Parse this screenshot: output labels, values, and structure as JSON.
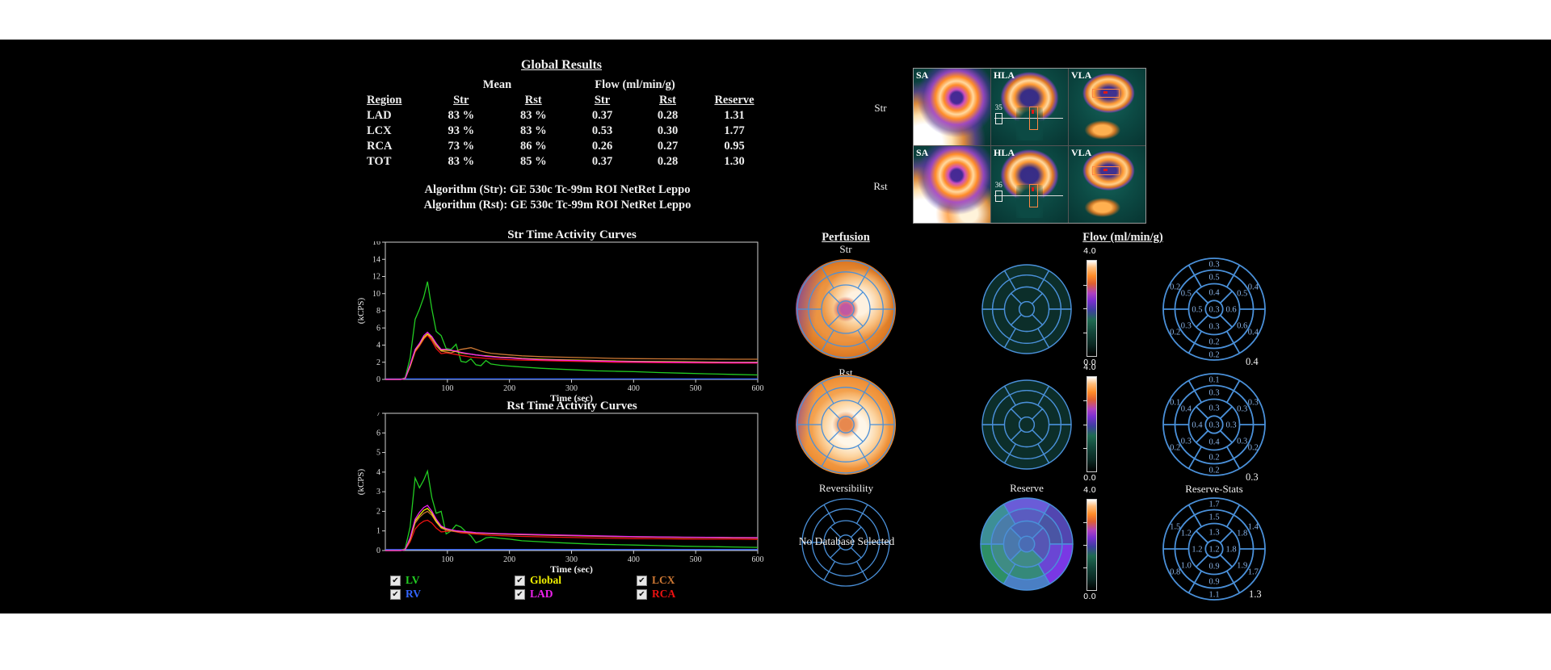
{
  "global_results": {
    "title": "Global Results",
    "group_headers": {
      "mean": "Mean",
      "flow": "Flow (ml/min/g)"
    },
    "columns": [
      "Region",
      "Str",
      "Rst",
      "Str",
      "Rst",
      "Reserve"
    ],
    "rows": [
      {
        "region": "LAD",
        "mean_str": "83 %",
        "mean_rst": "83 %",
        "flow_str": "0.37",
        "flow_rst": "0.28",
        "reserve": "1.31"
      },
      {
        "region": "LCX",
        "mean_str": "93 %",
        "mean_rst": "83 %",
        "flow_str": "0.53",
        "flow_rst": "0.30",
        "reserve": "1.77"
      },
      {
        "region": "RCA",
        "mean_str": "73 %",
        "mean_rst": "86 %",
        "flow_str": "0.26",
        "flow_rst": "0.27",
        "reserve": "0.95"
      },
      {
        "region": "TOT",
        "mean_str": "83 %",
        "mean_rst": "85 %",
        "flow_str": "0.37",
        "flow_rst": "0.28",
        "reserve": "1.30"
      }
    ],
    "algorithm_str": "Algorithm (Str):  GE 530c Tc-99m ROI NetRet Leppo",
    "algorithm_rst": "Algorithm (Rst):  GE 530c Tc-99m ROI NetRet Leppo"
  },
  "slice_panel": {
    "rows": [
      {
        "label": "Str",
        "cells": [
          {
            "type": "sa",
            "label": "SA"
          },
          {
            "type": "hla",
            "label": "HLA",
            "slice_num": "35"
          },
          {
            "type": "vla",
            "label": "VLA"
          }
        ]
      },
      {
        "label": "Rst",
        "cells": [
          {
            "type": "sa",
            "label": "SA"
          },
          {
            "type": "hla",
            "label": "HLA",
            "slice_num": "36"
          },
          {
            "type": "vla",
            "label": "VLA"
          }
        ]
      }
    ]
  },
  "legend": {
    "items": [
      {
        "label": "LV",
        "color": "#22cc22",
        "checked": true
      },
      {
        "label": "RV",
        "color": "#3366ff",
        "checked": true
      },
      {
        "label": "Global",
        "color": "#eeee00",
        "checked": true
      },
      {
        "label": "LAD",
        "color": "#ee22ee",
        "checked": true
      },
      {
        "label": "LCX",
        "color": "#cc7733",
        "checked": true
      },
      {
        "label": "RCA",
        "color": "#ee1111",
        "checked": true
      }
    ]
  },
  "chart_data": [
    {
      "type": "line",
      "title": "Str Time Activity Curves",
      "xlabel": "Time (sec)",
      "ylabel": "(kCPS)",
      "xlim": [
        0,
        600
      ],
      "ylim": [
        0,
        16
      ],
      "xticks": [
        100,
        200,
        300,
        400,
        500,
        600
      ],
      "yticks": [
        0,
        2,
        4,
        6,
        8,
        10,
        12,
        14,
        16
      ],
      "x": [
        0,
        15,
        25,
        32,
        40,
        48,
        55,
        62,
        68,
        75,
        82,
        90,
        98,
        106,
        114,
        122,
        130,
        138,
        146,
        154,
        162,
        170,
        185,
        200,
        220,
        250,
        280,
        310,
        340,
        370,
        400,
        440,
        480,
        520,
        560,
        600
      ],
      "series": [
        {
          "name": "RV",
          "color": "#3366ff",
          "y": [
            0.06,
            0.06,
            0.06,
            0.06,
            0.06,
            0.06,
            0.06,
            0.06,
            0.06,
            0.06,
            0.06,
            0.06,
            0.06,
            0.06,
            0.06,
            0.06,
            0.06,
            0.06,
            0.06,
            0.06,
            0.06,
            0.06,
            0.06,
            0.06,
            0.06,
            0.06,
            0.06,
            0.06,
            0.06,
            0.06,
            0.06,
            0.06,
            0.06,
            0.06,
            0.06,
            0.06
          ]
        },
        {
          "name": "LV",
          "color": "#22cc22",
          "y": [
            0,
            0,
            0,
            0.2,
            2.5,
            7.0,
            8.2,
            9.6,
            11.4,
            8.2,
            5.6,
            5.1,
            3.6,
            3.5,
            4.1,
            2.1,
            2.0,
            2.4,
            1.7,
            1.6,
            2.2,
            1.8,
            1.65,
            1.55,
            1.45,
            1.3,
            1.2,
            1.1,
            1.0,
            0.95,
            0.9,
            0.8,
            0.72,
            0.65,
            0.58,
            0.52
          ]
        },
        {
          "name": "RCA",
          "color": "#ee1111",
          "y": [
            0,
            0,
            0,
            0.1,
            1.5,
            3.2,
            3.9,
            4.7,
            5.15,
            4.5,
            3.6,
            3.0,
            3.1,
            3.0,
            2.9,
            2.8,
            2.7,
            2.6,
            2.55,
            2.5,
            2.45,
            2.4,
            2.35,
            2.3,
            2.25,
            2.2,
            2.15,
            2.1,
            2.05,
            2.0,
            1.98,
            1.95,
            1.93,
            1.91,
            1.9,
            1.9
          ]
        },
        {
          "name": "LCX",
          "color": "#cc7733",
          "y": [
            0,
            0,
            0,
            0.1,
            1.5,
            3.3,
            4.0,
            4.8,
            5.3,
            4.7,
            3.9,
            3.3,
            3.2,
            3.1,
            3.3,
            3.5,
            3.6,
            3.7,
            3.5,
            3.3,
            3.15,
            3.05,
            2.95,
            2.85,
            2.75,
            2.65,
            2.6,
            2.55,
            2.5,
            2.45,
            2.42,
            2.4,
            2.38,
            2.36,
            2.35,
            2.35
          ]
        },
        {
          "name": "Global",
          "color": "#eeee00",
          "y": [
            0,
            0,
            0,
            0.1,
            1.6,
            3.4,
            4.1,
            4.9,
            5.3,
            4.9,
            4.1,
            3.4,
            3.4,
            3.35,
            3.25,
            3.1,
            3.0,
            2.95,
            2.85,
            2.8,
            2.75,
            2.7,
            2.6,
            2.55,
            2.45,
            2.35,
            2.3,
            2.25,
            2.2,
            2.15,
            2.1,
            2.08,
            2.05,
            2.02,
            2.0,
            2.0
          ]
        },
        {
          "name": "LAD",
          "color": "#ee22ee",
          "y": [
            0,
            0,
            0,
            0.1,
            1.7,
            3.5,
            4.2,
            5.1,
            5.5,
            5.0,
            4.2,
            3.5,
            3.5,
            3.4,
            3.3,
            3.15,
            3.05,
            2.95,
            2.85,
            2.8,
            2.7,
            2.65,
            2.55,
            2.5,
            2.4,
            2.3,
            2.25,
            2.2,
            2.15,
            2.1,
            2.05,
            2.02,
            2.0,
            1.98,
            1.96,
            1.95
          ]
        }
      ]
    },
    {
      "type": "line",
      "title": "Rst Time Activity Curves",
      "xlabel": "Time (sec)",
      "ylabel": "(kCPS)",
      "xlim": [
        0,
        600
      ],
      "ylim": [
        0,
        7
      ],
      "xticks": [
        100,
        200,
        300,
        400,
        500,
        600
      ],
      "yticks": [
        0,
        1,
        2,
        3,
        4,
        5,
        6,
        7
      ],
      "x": [
        0,
        15,
        25,
        32,
        40,
        48,
        55,
        62,
        68,
        75,
        82,
        90,
        98,
        106,
        114,
        122,
        130,
        138,
        146,
        154,
        162,
        170,
        185,
        200,
        220,
        250,
        280,
        310,
        340,
        370,
        400,
        440,
        480,
        520,
        560,
        600
      ],
      "series": [
        {
          "name": "RV",
          "color": "#3366ff",
          "y": [
            0.05,
            0.05,
            0.05,
            0.05,
            0.05,
            0.05,
            0.05,
            0.05,
            0.05,
            0.05,
            0.05,
            0.05,
            0.05,
            0.05,
            0.05,
            0.05,
            0.05,
            0.05,
            0.05,
            0.05,
            0.05,
            0.05,
            0.05,
            0.05,
            0.05,
            0.05,
            0.05,
            0.05,
            0.05,
            0.05,
            0.05,
            0.05,
            0.05,
            0.05,
            0.05,
            0.05
          ]
        },
        {
          "name": "LV",
          "color": "#22cc22",
          "y": [
            0,
            0,
            0,
            0.1,
            1.2,
            3.7,
            3.2,
            3.6,
            4.05,
            2.7,
            1.9,
            2.0,
            0.85,
            1.0,
            1.3,
            1.2,
            0.95,
            0.75,
            0.4,
            0.5,
            0.65,
            0.68,
            0.62,
            0.58,
            0.5,
            0.45,
            0.4,
            0.36,
            0.32,
            0.3,
            0.28,
            0.25,
            0.22,
            0.2,
            0.18,
            0.16
          ]
        },
        {
          "name": "RCA",
          "color": "#ee1111",
          "y": [
            0,
            0,
            0,
            0.05,
            0.45,
            1.1,
            1.35,
            1.5,
            1.55,
            1.4,
            1.15,
            0.95,
            0.98,
            1.0,
            0.95,
            0.9,
            0.88,
            0.86,
            0.84,
            0.82,
            0.8,
            0.78,
            0.76,
            0.74,
            0.72,
            0.7,
            0.68,
            0.66,
            0.64,
            0.62,
            0.61,
            0.6,
            0.59,
            0.58,
            0.58,
            0.57
          ]
        },
        {
          "name": "LCX",
          "color": "#cc7733",
          "y": [
            0,
            0,
            0,
            0.05,
            0.55,
            1.4,
            1.7,
            1.9,
            2.0,
            1.8,
            1.45,
            1.15,
            1.05,
            1.0,
            0.97,
            0.95,
            0.93,
            0.91,
            0.89,
            0.88,
            0.87,
            0.86,
            0.84,
            0.83,
            0.81,
            0.79,
            0.77,
            0.75,
            0.73,
            0.71,
            0.7,
            0.69,
            0.68,
            0.67,
            0.66,
            0.66
          ]
        },
        {
          "name": "Global",
          "color": "#eeee00",
          "y": [
            0,
            0,
            0,
            0.05,
            0.6,
            1.5,
            1.8,
            2.05,
            2.15,
            1.9,
            1.5,
            1.2,
            1.1,
            1.05,
            1.0,
            0.97,
            0.95,
            0.93,
            0.9,
            0.89,
            0.88,
            0.87,
            0.85,
            0.84,
            0.82,
            0.8,
            0.78,
            0.76,
            0.74,
            0.72,
            0.7,
            0.68,
            0.67,
            0.66,
            0.65,
            0.64
          ]
        },
        {
          "name": "LAD",
          "color": "#ee22ee",
          "y": [
            0,
            0,
            0,
            0.05,
            0.65,
            1.6,
            1.95,
            2.2,
            2.3,
            2.0,
            1.6,
            1.25,
            1.12,
            1.06,
            1.01,
            0.98,
            0.96,
            0.94,
            0.91,
            0.9,
            0.89,
            0.88,
            0.86,
            0.85,
            0.83,
            0.81,
            0.79,
            0.77,
            0.75,
            0.73,
            0.71,
            0.69,
            0.68,
            0.67,
            0.66,
            0.65
          ]
        }
      ]
    }
  ],
  "polar_section": {
    "perfusion_header": "Perfusion",
    "flow_header": "Flow (ml/min/g)",
    "labels": {
      "str": "Str",
      "rst": "Rst",
      "reversibility": "Reversibility",
      "reserve": "Reserve",
      "reserve_stats": "Reserve-Stats"
    },
    "no_database_message": "No Database Selected",
    "colorbar": {
      "max": "4.0",
      "min": "0.0"
    },
    "grid_color": "#4a90d9",
    "value_text_color": "#8ab4e8",
    "flow_fill": "#0c2e2a",
    "bullseye_values": {
      "str_flow": {
        "apex": "0.3",
        "apical": [
          "0.4",
          "0.6",
          "0.3",
          "0.5"
        ],
        "mid": [
          "0.5",
          "0.5",
          "0.6",
          "0.2",
          "0.3",
          "0.5"
        ],
        "basal": [
          "0.3",
          "0.4",
          "0.4",
          "0.2",
          "0.2",
          "0.2"
        ],
        "global": "0.4"
      },
      "rst_flow": {
        "apex": "0.3",
        "apical": [
          "0.3",
          "0.3",
          "0.4",
          "0.4"
        ],
        "mid": [
          "0.3",
          "0.3",
          "0.3",
          "0.2",
          "0.3",
          "0.4"
        ],
        "basal": [
          "0.1",
          "0.3",
          "0.2",
          "0.2",
          "0.2",
          "0.1"
        ],
        "global": "0.3"
      },
      "reserve_stats": {
        "apex": "1.2",
        "apical": [
          "1.3",
          "1.8",
          "0.9",
          "1.2"
        ],
        "mid": [
          "1.5",
          "1.8",
          "1.9",
          "0.9",
          "1.0",
          "1.2"
        ],
        "basal": [
          "1.7",
          "1.4",
          "1.7",
          "1.1",
          "0.8",
          "1.5"
        ],
        "global": "1.3"
      }
    },
    "reserve_map_colors": {
      "apex": "#4a6cb4",
      "apical": [
        "#4a66b4",
        "#5656b4",
        "#3f8a86",
        "#4a78ac"
      ],
      "mid": [
        "#5a5cc0",
        "#4a55a4",
        "#6a46d4",
        "#35897a",
        "#3f8c84",
        "#4a7ca8"
      ],
      "basal": [
        "#6a5cd8",
        "#5246b0",
        "#7a38e4",
        "#4a7fc4",
        "#2e8f66",
        "#3d8f96"
      ]
    }
  }
}
